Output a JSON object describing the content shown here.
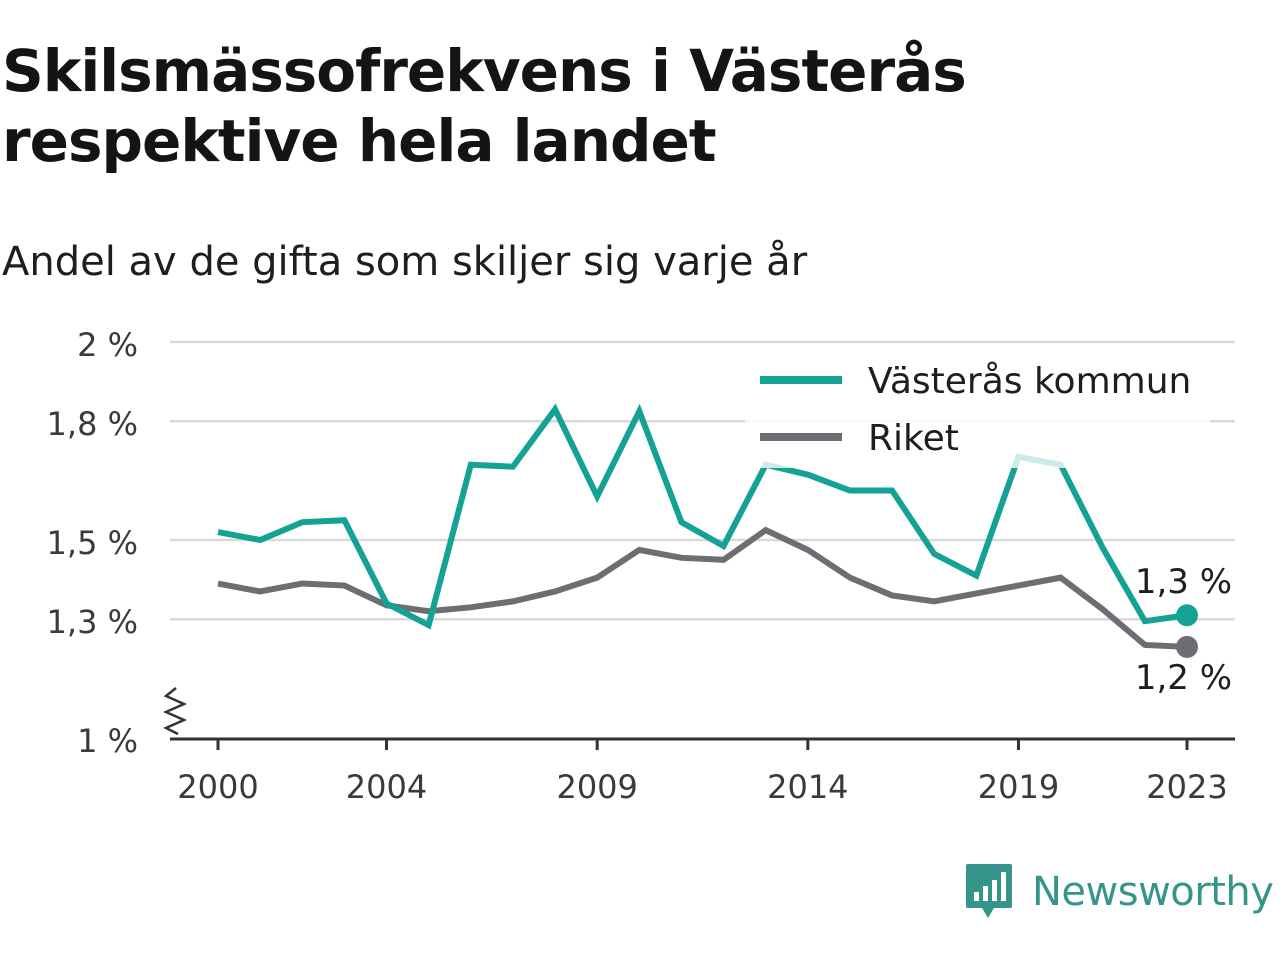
{
  "title": "Skilsmässofrekvens i Västerås respektive hela landet",
  "subtitle": "Andel av de gifta som skiljer sig varje år",
  "brand": "Newsworthy",
  "chart_data": {
    "type": "line",
    "x": [
      2000,
      2001,
      2002,
      2003,
      2004,
      2005,
      2006,
      2007,
      2008,
      2009,
      2010,
      2011,
      2012,
      2013,
      2014,
      2015,
      2016,
      2017,
      2018,
      2019,
      2020,
      2021,
      2022,
      2023
    ],
    "series": [
      {
        "name": "Västerås kommun",
        "color": "#14a295",
        "values": [
          1.52,
          1.5,
          1.545,
          1.55,
          1.34,
          1.285,
          1.69,
          1.685,
          1.83,
          1.61,
          1.825,
          1.545,
          1.485,
          1.69,
          1.665,
          1.625,
          1.625,
          1.465,
          1.41,
          1.71,
          1.69,
          1.48,
          1.295,
          1.31
        ],
        "end_label": "1,3 %"
      },
      {
        "name": "Riket",
        "color": "#6f6d74",
        "values": [
          1.39,
          1.37,
          1.39,
          1.385,
          1.335,
          1.32,
          1.33,
          1.345,
          1.37,
          1.405,
          1.475,
          1.455,
          1.45,
          1.525,
          1.475,
          1.405,
          1.36,
          1.345,
          1.365,
          1.385,
          1.405,
          1.325,
          1.235,
          1.23
        ],
        "end_label": "1,2 %"
      }
    ],
    "y_ticks": [
      {
        "value": 1.0,
        "label": "1 %"
      },
      {
        "value": 1.3,
        "label": "1,3 %"
      },
      {
        "value": 1.5,
        "label": "1,5 %"
      },
      {
        "value": 1.8,
        "label": "1,8 %"
      },
      {
        "value": 2.0,
        "label": "2 %"
      }
    ],
    "x_ticks": [
      2000,
      2004,
      2009,
      2014,
      2019,
      2023
    ],
    "ylim": [
      1.0,
      2.0
    ],
    "y_axis_break": true,
    "grid": true,
    "legend_position": "top-right"
  }
}
